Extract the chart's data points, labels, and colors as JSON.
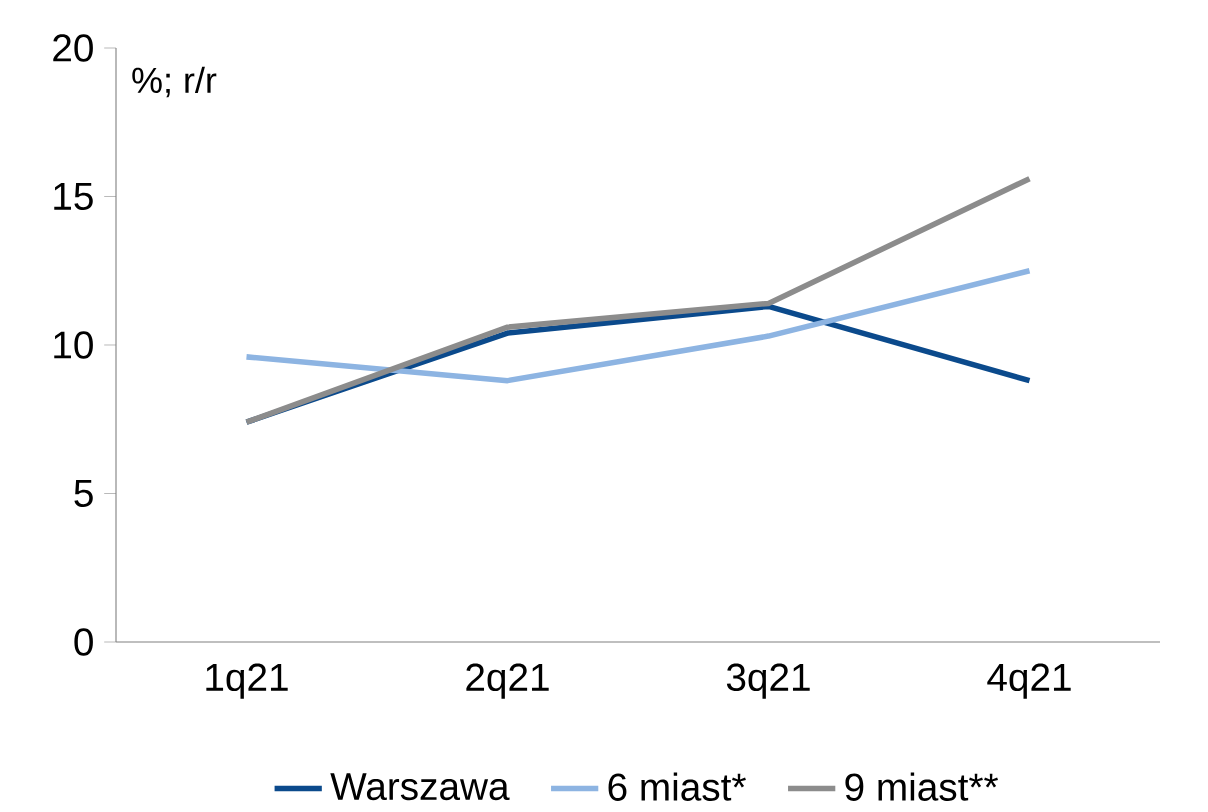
{
  "chart_data": {
    "type": "line",
    "ylabel": "%; r/r",
    "categories": [
      "1q21",
      "2q21",
      "3q21",
      "4q21"
    ],
    "series": [
      {
        "name": "Warszawa",
        "color": "#0b4a8c",
        "values": [
          7.4,
          10.4,
          11.3,
          8.8
        ]
      },
      {
        "name": "6 miast*",
        "color": "#8db4e2",
        "values": [
          9.6,
          8.8,
          10.3,
          12.5
        ]
      },
      {
        "name": "9 miast**",
        "color": "#8c8c8c",
        "values": [
          7.4,
          10.6,
          11.4,
          15.6
        ]
      }
    ],
    "ylim": [
      0,
      20
    ],
    "yticks": [
      0,
      5,
      10,
      15,
      20
    ],
    "grid": false,
    "legend": "bottom",
    "marker": "none",
    "line_style": "solid"
  }
}
